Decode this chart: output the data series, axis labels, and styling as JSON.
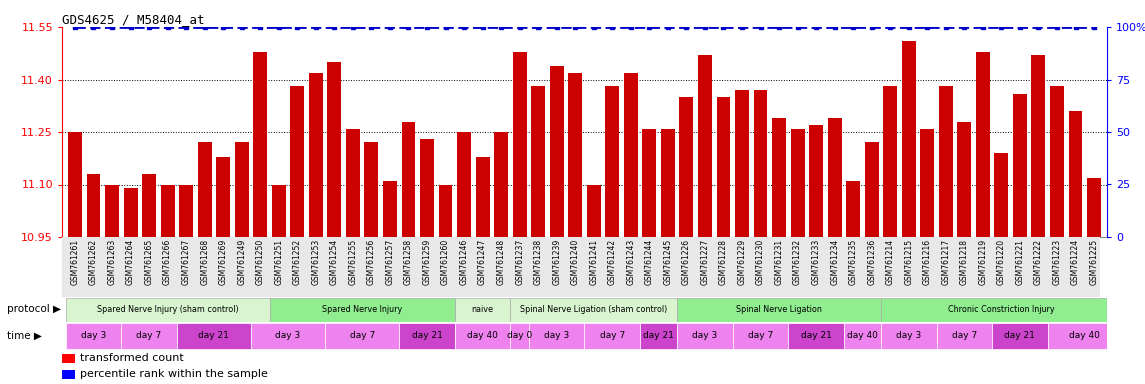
{
  "title": "GDS4625 / M58404_at",
  "samples": [
    "GSM761261",
    "GSM761262",
    "GSM761263",
    "GSM761264",
    "GSM761265",
    "GSM761266",
    "GSM761267",
    "GSM761268",
    "GSM761269",
    "GSM761249",
    "GSM761250",
    "GSM761251",
    "GSM761252",
    "GSM761253",
    "GSM761254",
    "GSM761255",
    "GSM761256",
    "GSM761257",
    "GSM761258",
    "GSM761259",
    "GSM761260",
    "GSM761246",
    "GSM761247",
    "GSM761248",
    "GSM761237",
    "GSM761238",
    "GSM761239",
    "GSM761240",
    "GSM761241",
    "GSM761242",
    "GSM761243",
    "GSM761244",
    "GSM761245",
    "GSM761226",
    "GSM761227",
    "GSM761228",
    "GSM761229",
    "GSM761230",
    "GSM761231",
    "GSM761232",
    "GSM761233",
    "GSM761234",
    "GSM761235",
    "GSM761236",
    "GSM761214",
    "GSM761215",
    "GSM761216",
    "GSM761217",
    "GSM761218",
    "GSM761219",
    "GSM761220",
    "GSM761221",
    "GSM761222",
    "GSM761223",
    "GSM761224",
    "GSM761225"
  ],
  "bar_values": [
    11.25,
    11.13,
    11.1,
    11.09,
    11.13,
    11.1,
    11.1,
    11.22,
    11.18,
    11.22,
    11.48,
    11.1,
    11.38,
    11.42,
    11.45,
    11.26,
    11.22,
    11.11,
    11.28,
    11.23,
    11.1,
    11.25,
    11.18,
    11.25,
    11.48,
    11.38,
    11.44,
    11.42,
    11.1,
    11.38,
    11.42,
    11.26,
    11.26,
    11.35,
    11.47,
    11.35,
    11.37,
    11.37,
    11.29,
    11.26,
    11.27,
    11.29,
    11.11,
    11.22,
    11.38,
    11.51,
    11.26,
    11.38,
    11.28,
    11.48,
    11.19,
    11.36,
    11.47,
    11.38,
    11.31,
    11.12
  ],
  "percentile_values": [
    100,
    100,
    100,
    100,
    100,
    100,
    100,
    100,
    100,
    100,
    100,
    100,
    100,
    100,
    100,
    100,
    100,
    100,
    100,
    100,
    100,
    100,
    100,
    100,
    100,
    100,
    100,
    100,
    100,
    100,
    100,
    100,
    100,
    100,
    100,
    100,
    100,
    100,
    100,
    100,
    100,
    100,
    100,
    100,
    100,
    100,
    100,
    100,
    100,
    100,
    100,
    100,
    100,
    100,
    100,
    100
  ],
  "ylim_left": [
    10.95,
    11.55
  ],
  "ylim_right": [
    0,
    100
  ],
  "yticks_left": [
    10.95,
    11.1,
    11.25,
    11.4,
    11.55
  ],
  "yticks_right": [
    0,
    25,
    50,
    75,
    100
  ],
  "bar_color": "#cc0000",
  "percentile_color": "#0000cc",
  "background_color": "#ffffff",
  "protocol_groups": [
    {
      "label": "Spared Nerve Injury (sham control)",
      "start": 0,
      "end": 10,
      "color": "#d8f5d0"
    },
    {
      "label": "Spared Nerve Injury",
      "start": 11,
      "end": 20,
      "color": "#90ee90"
    },
    {
      "label": "naive",
      "start": 21,
      "end": 23,
      "color": "#d8f5d0"
    },
    {
      "label": "Spinal Nerve Ligation (sham control)",
      "start": 24,
      "end": 32,
      "color": "#d8f5d0"
    },
    {
      "label": "Spinal Nerve Ligation",
      "start": 33,
      "end": 43,
      "color": "#90ee90"
    },
    {
      "label": "Chronic Constriction Injury",
      "start": 44,
      "end": 56,
      "color": "#90ee90"
    }
  ],
  "time_groups": [
    {
      "label": "day 3",
      "start": 0,
      "end": 2,
      "color": "#ee82ee"
    },
    {
      "label": "day 7",
      "start": 3,
      "end": 5,
      "color": "#ee82ee"
    },
    {
      "label": "day 21",
      "start": 6,
      "end": 9,
      "color": "#cc44cc"
    },
    {
      "label": "day 3",
      "start": 10,
      "end": 13,
      "color": "#ee82ee"
    },
    {
      "label": "day 7",
      "start": 14,
      "end": 17,
      "color": "#ee82ee"
    },
    {
      "label": "day 21",
      "start": 18,
      "end": 20,
      "color": "#cc44cc"
    },
    {
      "label": "day 40",
      "start": 21,
      "end": 23,
      "color": "#ee82ee"
    },
    {
      "label": "day 0",
      "start": 24,
      "end": 24,
      "color": "#ee82ee"
    },
    {
      "label": "day 3",
      "start": 25,
      "end": 27,
      "color": "#ee82ee"
    },
    {
      "label": "day 7",
      "start": 28,
      "end": 30,
      "color": "#ee82ee"
    },
    {
      "label": "day 21",
      "start": 31,
      "end": 32,
      "color": "#cc44cc"
    },
    {
      "label": "day 3",
      "start": 33,
      "end": 35,
      "color": "#ee82ee"
    },
    {
      "label": "day 7",
      "start": 36,
      "end": 38,
      "color": "#ee82ee"
    },
    {
      "label": "day 21",
      "start": 39,
      "end": 41,
      "color": "#cc44cc"
    },
    {
      "label": "day 40",
      "start": 42,
      "end": 43,
      "color": "#ee82ee"
    },
    {
      "label": "day 3",
      "start": 44,
      "end": 46,
      "color": "#ee82ee"
    },
    {
      "label": "day 7",
      "start": 47,
      "end": 49,
      "color": "#ee82ee"
    },
    {
      "label": "day 21",
      "start": 50,
      "end": 52,
      "color": "#cc44cc"
    },
    {
      "label": "day 40",
      "start": 53,
      "end": 56,
      "color": "#ee82ee"
    }
  ],
  "legend": [
    {
      "color": "#cc0000",
      "label": "transformed count"
    },
    {
      "color": "#0000cc",
      "label": "percentile rank within the sample"
    }
  ]
}
